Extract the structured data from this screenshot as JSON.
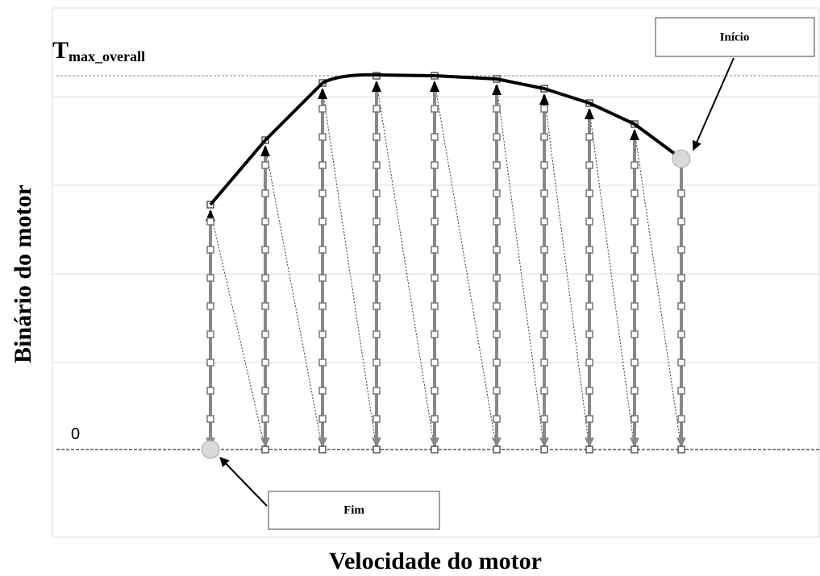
{
  "y_axis_label": "Binário do motor",
  "x_axis_label": "Velocidade do motor",
  "tmax_label": {
    "main": "T",
    "subscript": "max_overall"
  },
  "zero_label": "0",
  "start_label": "Início",
  "end_label": "Fim"
}
